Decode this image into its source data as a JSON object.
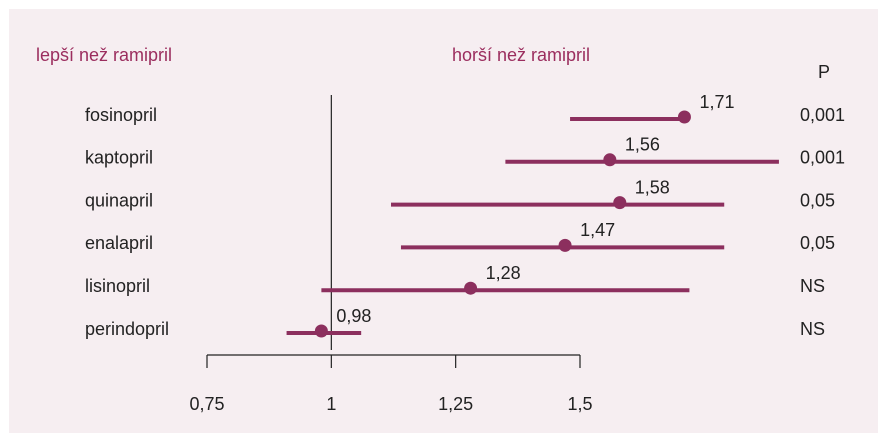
{
  "chart_data": {
    "type": "forest",
    "left_label": "lepší než ramipril",
    "right_label": "horší než ramipril",
    "p_header": "P",
    "categories": [
      "fosinopril",
      "kaptopril",
      "quinapril",
      "enalapril",
      "lisinopril",
      "perindopril"
    ],
    "values": [
      1.71,
      1.56,
      1.58,
      1.47,
      1.28,
      0.98
    ],
    "value_labels": [
      "1,71",
      "1,56",
      "1,58",
      "1,47",
      "1,28",
      "0,98"
    ],
    "lower": [
      1.48,
      1.35,
      1.12,
      1.14,
      0.98,
      0.91
    ],
    "upper": [
      1.72,
      1.9,
      1.79,
      1.79,
      1.72,
      1.06
    ],
    "p_values": [
      "0,001",
      "0,001",
      "0,05",
      "0,05",
      "NS",
      "NS"
    ],
    "color": "#8c2f5e",
    "xlim": [
      0.75,
      1.5
    ],
    "xticks": [
      {
        "value": 0.75,
        "label": "0,75"
      },
      1,
      {
        "value": 1.25,
        "label": "1,25"
      },
      {
        "value": 1.5,
        "label": "1,5"
      }
    ]
  }
}
